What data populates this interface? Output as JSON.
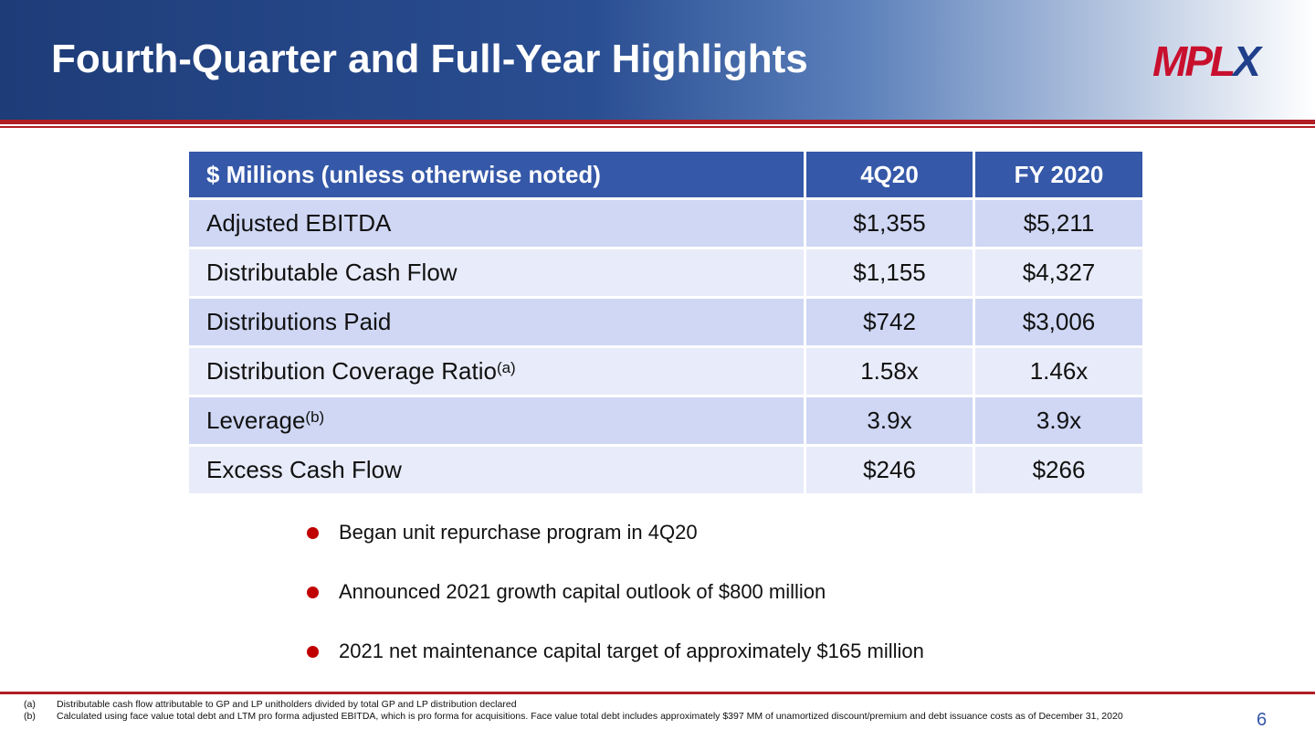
{
  "header": {
    "title": "Fourth-Quarter and Full-Year Highlights",
    "logo": {
      "main": "MPL",
      "accent": "X"
    }
  },
  "table": {
    "columns": [
      "$ Millions (unless otherwise noted)",
      "4Q20",
      "FY 2020"
    ],
    "rows": [
      {
        "label": "Adjusted EBITDA",
        "values": [
          "$1,355",
          "$5,211"
        ]
      },
      {
        "label": "Distributable Cash Flow",
        "values": [
          "$1,155",
          "$4,327"
        ]
      },
      {
        "label": "Distributions Paid",
        "values": [
          "$742",
          "$3,006"
        ]
      },
      {
        "label": "Distribution Coverage Ratio",
        "sup": "(a)",
        "values": [
          "1.58x",
          "1.46x"
        ]
      },
      {
        "label": "Leverage",
        "sup": "(b)",
        "values": [
          "3.9x",
          "3.9x"
        ]
      },
      {
        "label": "Excess Cash Flow",
        "values": [
          "$246",
          "$266"
        ]
      }
    ]
  },
  "bullets": [
    "Began unit repurchase program in 4Q20",
    "Announced 2021 growth capital outlook of $800 million",
    "2021 net maintenance capital target of approximately $165 million"
  ],
  "footnotes": [
    {
      "mark": "(a)",
      "text": "Distributable cash flow attributable to GP and LP unitholders divided by total GP and LP distribution declared"
    },
    {
      "mark": "(b)",
      "text": "Calculated using face value total debt and LTM pro forma adjusted EBITDA, which is pro forma for acquisitions. Face value total debt includes approximately $397 MM of unamortized discount/premium and debt issuance costs as of December 31, 2020"
    }
  ],
  "page_number": "6"
}
